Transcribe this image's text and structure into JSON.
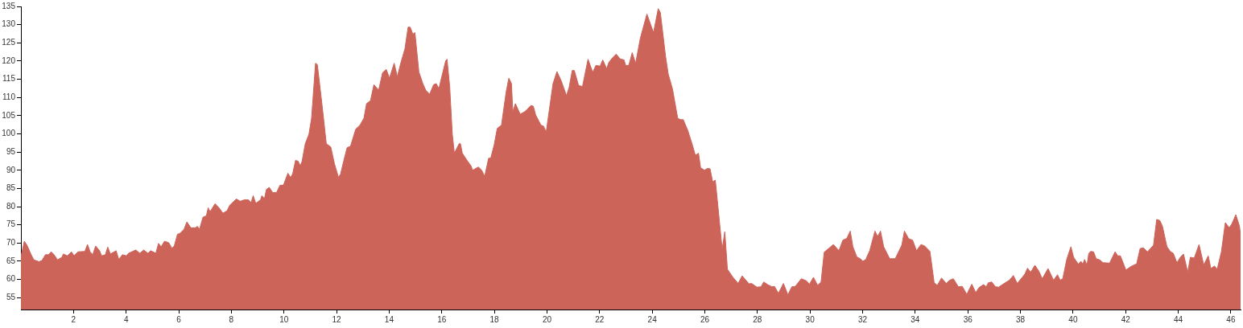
{
  "chart_data": {
    "type": "area",
    "color": "#cd645a",
    "x": [
      0,
      0.03,
      0.13,
      0.23,
      0.39,
      0.49,
      0.69,
      0.8,
      0.93,
      1.05,
      1.15,
      1.26,
      1.39,
      1.56,
      1.61,
      1.77,
      1.92,
      2.02,
      2.17,
      2.43,
      2.53,
      2.63,
      2.73,
      2.84,
      2.99,
      3.07,
      3.21,
      3.3,
      3.4,
      3.62,
      3.72,
      3.86,
      4.01,
      4.09,
      4.37,
      4.52,
      4.67,
      4.83,
      4.93,
      5.13,
      5.23,
      5.33,
      5.46,
      5.62,
      5.74,
      5.83,
      5.95,
      6.05,
      6.2,
      6.31,
      6.46,
      6.64,
      6.71,
      6.79,
      6.92,
      7.05,
      7.12,
      7.19,
      7.38,
      7.53,
      7.68,
      7.84,
      7.94,
      8.19,
      8.34,
      8.5,
      8.65,
      8.75,
      8.83,
      8.93,
      9.11,
      9.16,
      9.26,
      9.33,
      9.44,
      9.57,
      9.72,
      9.85,
      9.98,
      10.15,
      10.25,
      10.33,
      10.44,
      10.54,
      10.62,
      10.69,
      10.81,
      10.95,
      11.05,
      11.2,
      11.27,
      11.46,
      11.61,
      11.78,
      11.92,
      12.07,
      12.15,
      12.27,
      12.4,
      12.53,
      12.73,
      12.89,
      13.04,
      13.14,
      13.29,
      13.42,
      13.6,
      13.75,
      13.89,
      14.01,
      14.19,
      14.31,
      14.44,
      14.6,
      14.72,
      14.8,
      14.9,
      14.98,
      15.13,
      15.28,
      15.39,
      15.54,
      15.69,
      15.79,
      15.89,
      16,
      16.15,
      16.2,
      16.3,
      16.4,
      16.48,
      16.66,
      16.71,
      16.78,
      16.96,
      17.12,
      17.17,
      17.39,
      17.52,
      17.63,
      17.78,
      17.86,
      17.99,
      18.11,
      18.27,
      18.45,
      18.55,
      18.65,
      18.7,
      18.8,
      18.98,
      19.16,
      19.39,
      19.48,
      19.57,
      19.77,
      19.87,
      19.97,
      20.23,
      20.38,
      20.54,
      20.74,
      20.84,
      20.96,
      21.04,
      21.2,
      21.35,
      21.56,
      21.74,
      21.86,
      22.02,
      22.12,
      22.27,
      22.35,
      22.48,
      22.63,
      22.78,
      22.93,
      22.99,
      23.11,
      23.24,
      23.37,
      23.55,
      23.8,
      24.05,
      24.23,
      24.31,
      24.51,
      24.61,
      24.77,
      24.97,
      25.07,
      25.18,
      25.35,
      25.53,
      25.64,
      25.76,
      25.84,
      25.99,
      26.1,
      26.2,
      26.3,
      26.4,
      26.5,
      26.66,
      26.76,
      26.86,
      27.07,
      27.27,
      27.42,
      27.68,
      27.78,
      27.98,
      28.14,
      28.24,
      28.39,
      28.55,
      28.65,
      28.8,
      28.99,
      29.16,
      29.31,
      29.44,
      29.67,
      29.87,
      29.98,
      30.13,
      30.29,
      30.42,
      30.54,
      30.74,
      30.89,
      31.1,
      31.25,
      31.4,
      31.53,
      31.63,
      31.78,
      31.91,
      32.01,
      32.12,
      32.27,
      32.47,
      32.57,
      32.68,
      32.8,
      33.03,
      33.24,
      33.49,
      33.59,
      33.75,
      33.9,
      34.05,
      34.22,
      34.36,
      34.56,
      34.72,
      34.84,
      35,
      35.18,
      35.31,
      35.45,
      35.64,
      35.79,
      35.96,
      36.15,
      36.3,
      36.43,
      36.6,
      36.7,
      36.78,
      36.91,
      37.05,
      37.17,
      37.42,
      37.58,
      37.73,
      37.88,
      38.17,
      38.27,
      38.39,
      38.55,
      38.7,
      38.83,
      39.05,
      39.26,
      39.41,
      39.51,
      39.61,
      39.76,
      39.92,
      40.02,
      40.2,
      40.3,
      40.37,
      40.44,
      40.53,
      40.6,
      40.67,
      40.78,
      40.88,
      41.01,
      41.14,
      41.39,
      41.6,
      41.7,
      41.8,
      42.01,
      42.21,
      42.42,
      42.55,
      42.67,
      42.83,
      43.06,
      43.18,
      43.3,
      43.4,
      43.57,
      43.71,
      43.81,
      43.95,
      44.08,
      44.2,
      44.36,
      44.46,
      44.61,
      44.79,
      44.97,
      45.14,
      45.24,
      45.38,
      45.48,
      45.64,
      45.79,
      45.94,
      46.04,
      46.19,
      46.33,
      46.37
    ],
    "values": [
      67,
      67.2,
      70.5,
      69.4,
      66.8,
      65.4,
      64.9,
      65.2,
      66.8,
      66.8,
      67.6,
      66.8,
      65.4,
      66.1,
      67,
      66.5,
      67.6,
      66.5,
      67.6,
      67.7,
      69.6,
      67.6,
      66.8,
      69.2,
      67.9,
      66.5,
      66.8,
      68.9,
      67,
      67.9,
      65.5,
      66.8,
      66.5,
      67.2,
      68.1,
      67.2,
      68.1,
      67.2,
      67.9,
      67.2,
      69.9,
      69,
      70.5,
      70.1,
      68.6,
      69.2,
      72.4,
      72.7,
      73.8,
      75.8,
      74.2,
      74.2,
      74.6,
      73.8,
      77.1,
      77.5,
      79.7,
      78.6,
      80.8,
      79.7,
      78.2,
      78.9,
      80.4,
      82.1,
      81.5,
      81.9,
      81.9,
      81.1,
      83,
      80.9,
      81.9,
      83,
      82.2,
      84.7,
      85.3,
      83.9,
      83.9,
      85.9,
      85.9,
      89.2,
      88,
      89,
      92.7,
      92.5,
      91.2,
      92.5,
      97.3,
      99.9,
      104.3,
      119.4,
      119,
      107.2,
      97.3,
      96.4,
      91.8,
      88.1,
      88.9,
      92.5,
      96.2,
      96.6,
      101.3,
      102.4,
      104.3,
      108.3,
      109.1,
      113.5,
      112,
      116.8,
      117.7,
      115.3,
      119.4,
      115.7,
      119.4,
      123.4,
      129.3,
      129.3,
      127.4,
      127.8,
      117,
      113.8,
      112,
      110.9,
      113.5,
      113.8,
      112.4,
      115.7,
      120.1,
      120.5,
      113.1,
      99.9,
      94.7,
      97.3,
      97.3,
      94.7,
      92.7,
      91.1,
      90,
      90.9,
      90,
      88.3,
      93.3,
      93.3,
      96.9,
      101.5,
      102.4,
      111.6,
      115.3,
      113.8,
      106.1,
      108.3,
      105.4,
      106.1,
      107.8,
      107.6,
      105.2,
      102.4,
      102.1,
      100.5,
      113.8,
      117.1,
      114.6,
      110.5,
      112.7,
      117.4,
      117.4,
      113.3,
      113,
      120.5,
      116.9,
      118.8,
      118.6,
      120.3,
      117.9,
      119.6,
      120.8,
      121.9,
      120.6,
      120.3,
      118.8,
      118.8,
      122.3,
      119.4,
      126.3,
      132.9,
      127.8,
      134.4,
      133.3,
      121.2,
      116.4,
      112.4,
      104.3,
      103.9,
      103.9,
      101,
      96.9,
      94.1,
      94.7,
      90.7,
      90,
      90.5,
      90.4,
      86.8,
      87.3,
      80,
      68.3,
      73.1,
      62.8,
      60.6,
      58.9,
      61,
      58.8,
      58.9,
      57.9,
      58,
      59.3,
      58.6,
      58,
      58.1,
      56.2,
      58.9,
      55.8,
      58,
      58.1,
      60.2,
      59.6,
      58.7,
      60.6,
      58.4,
      59.3,
      67.5,
      68.7,
      69.6,
      67.9,
      70.8,
      71.3,
      73.3,
      69,
      66.2,
      65.7,
      65,
      65.5,
      67.9,
      73.3,
      71.8,
      73.3,
      69,
      65.7,
      65.7,
      69.4,
      73.3,
      71.2,
      70.8,
      67.9,
      69.6,
      69.2,
      67.7,
      59.1,
      58.4,
      60.4,
      58.9,
      59.8,
      60.2,
      58,
      58.1,
      55.9,
      58.7,
      56.4,
      57.8,
      58.6,
      58,
      59.1,
      59.3,
      58,
      57.9,
      59.1,
      59.8,
      61.1,
      58.9,
      61.5,
      63.1,
      62,
      63.9,
      62.3,
      60.2,
      63,
      59.8,
      61.3,
      59.8,
      60.2,
      65.5,
      69,
      66.1,
      64.2,
      65,
      64.2,
      65.5,
      63.9,
      67.2,
      67.7,
      67.6,
      65.7,
      65.4,
      64.6,
      64.5,
      67.6,
      66.5,
      66.5,
      62.6,
      63.6,
      64.3,
      68.5,
      68.7,
      67.6,
      69.4,
      76.5,
      76.2,
      74.6,
      69,
      67.6,
      67.2,
      64.6,
      66.1,
      67,
      62,
      66.1,
      65.9,
      69.6,
      64,
      66.5,
      63,
      63.7,
      62.8,
      67.6,
      75.6,
      74.2,
      75.3,
      77.8,
      74.6,
      72.1
    ],
    "xlim": [
      0,
      46.37
    ],
    "ylim": [
      51.75,
      135
    ],
    "xticks": [
      2,
      4,
      6,
      8,
      10,
      12,
      14,
      16,
      18,
      20,
      22,
      24,
      26,
      28,
      30,
      32,
      34,
      36,
      38,
      40,
      42,
      44,
      46
    ],
    "yticks": [
      55,
      60,
      65,
      70,
      75,
      80,
      85,
      90,
      95,
      100,
      105,
      110,
      115,
      120,
      125,
      130,
      135
    ],
    "grid": false
  }
}
